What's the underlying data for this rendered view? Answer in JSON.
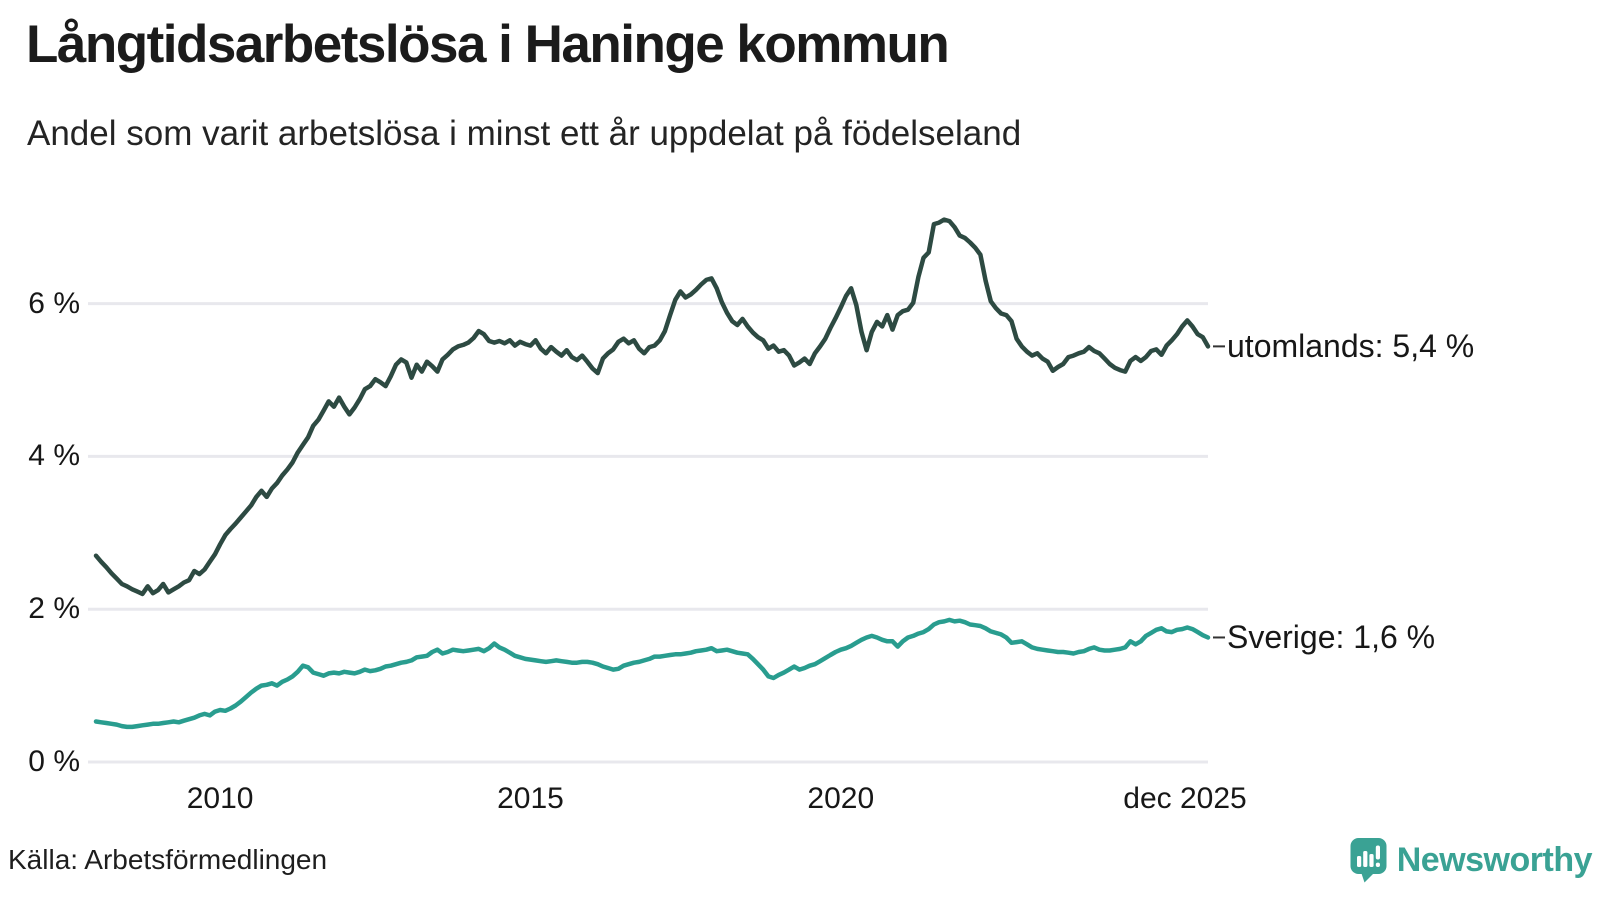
{
  "header": {
    "title": "Långtidsarbetslösa i Haninge kommun",
    "subtitle": "Andel som varit arbetslösa i minst ett år uppdelat på födelseland"
  },
  "chart_data": {
    "type": "line",
    "unit": "percent",
    "frequency": "monthly",
    "x_start": "2008-01",
    "x_end": "2025-12",
    "grid": "horizontal",
    "legend_position": "line-end-right",
    "ylim": [
      0,
      7.4
    ],
    "yticks": [
      {
        "value": 6,
        "label": "6 %"
      },
      {
        "value": 4,
        "label": "4 %"
      },
      {
        "value": 2,
        "label": "2 %"
      },
      {
        "value": 0,
        "label": "0 %"
      }
    ],
    "xticks": [
      {
        "month_index": 24,
        "label": "2010"
      },
      {
        "month_index": 84,
        "label": "2015"
      },
      {
        "month_index": 144,
        "label": "2020"
      },
      {
        "month_index": 215,
        "label": "dec 2025"
      }
    ],
    "series": [
      {
        "name": "utomlands",
        "label": "utomlands: 5,4 %",
        "last_value": 5.4,
        "color": "#2d4a42",
        "values": [
          2.7,
          2.62,
          2.55,
          2.47,
          2.4,
          2.33,
          2.3,
          2.26,
          2.23,
          2.2,
          2.3,
          2.21,
          2.25,
          2.33,
          2.22,
          2.26,
          2.3,
          2.35,
          2.38,
          2.5,
          2.46,
          2.52,
          2.62,
          2.72,
          2.85,
          2.97,
          3.05,
          3.12,
          3.2,
          3.28,
          3.36,
          3.47,
          3.55,
          3.47,
          3.58,
          3.65,
          3.75,
          3.83,
          3.92,
          4.05,
          4.15,
          4.25,
          4.4,
          4.48,
          4.6,
          4.72,
          4.65,
          4.77,
          4.65,
          4.55,
          4.64,
          4.75,
          4.88,
          4.92,
          5.01,
          4.97,
          4.92,
          5.05,
          5.2,
          5.27,
          5.23,
          5.03,
          5.2,
          5.11,
          5.24,
          5.18,
          5.11,
          5.27,
          5.33,
          5.4,
          5.44,
          5.46,
          5.49,
          5.55,
          5.64,
          5.6,
          5.51,
          5.49,
          5.51,
          5.48,
          5.52,
          5.45,
          5.5,
          5.47,
          5.45,
          5.52,
          5.41,
          5.35,
          5.43,
          5.37,
          5.32,
          5.39,
          5.3,
          5.26,
          5.32,
          5.24,
          5.15,
          5.09,
          5.28,
          5.35,
          5.4,
          5.5,
          5.54,
          5.48,
          5.52,
          5.41,
          5.35,
          5.43,
          5.45,
          5.52,
          5.64,
          5.85,
          6.05,
          6.16,
          6.08,
          6.12,
          6.18,
          6.25,
          6.31,
          6.33,
          6.2,
          6.02,
          5.88,
          5.77,
          5.72,
          5.8,
          5.7,
          5.62,
          5.56,
          5.52,
          5.41,
          5.45,
          5.37,
          5.39,
          5.32,
          5.19,
          5.23,
          5.28,
          5.21,
          5.35,
          5.44,
          5.54,
          5.68,
          5.81,
          5.95,
          6.1,
          6.2,
          5.98,
          5.63,
          5.39,
          5.63,
          5.76,
          5.7,
          5.85,
          5.66,
          5.85,
          5.9,
          5.92,
          6.01,
          6.35,
          6.6,
          6.67,
          7.04,
          7.06,
          7.1,
          7.08,
          7.0,
          6.89,
          6.86,
          6.8,
          6.73,
          6.64,
          6.3,
          6.03,
          5.94,
          5.87,
          5.85,
          5.77,
          5.54,
          5.44,
          5.37,
          5.32,
          5.35,
          5.28,
          5.24,
          5.12,
          5.17,
          5.21,
          5.3,
          5.32,
          5.35,
          5.37,
          5.43,
          5.38,
          5.35,
          5.28,
          5.21,
          5.16,
          5.13,
          5.11,
          5.25,
          5.3,
          5.25,
          5.3,
          5.38,
          5.4,
          5.33,
          5.45,
          5.52,
          5.6,
          5.7,
          5.78,
          5.7,
          5.6,
          5.56,
          5.44
        ]
      },
      {
        "name": "sverige",
        "label": "Sverige: 1,6 %",
        "last_value": 1.6,
        "color": "#299d8f",
        "values": [
          0.53,
          0.52,
          0.51,
          0.5,
          0.49,
          0.47,
          0.46,
          0.46,
          0.47,
          0.48,
          0.49,
          0.5,
          0.5,
          0.51,
          0.52,
          0.53,
          0.52,
          0.54,
          0.56,
          0.58,
          0.61,
          0.63,
          0.61,
          0.66,
          0.68,
          0.67,
          0.7,
          0.74,
          0.79,
          0.85,
          0.91,
          0.96,
          1.0,
          1.01,
          1.03,
          1.0,
          1.05,
          1.08,
          1.12,
          1.18,
          1.26,
          1.24,
          1.17,
          1.15,
          1.13,
          1.16,
          1.17,
          1.16,
          1.18,
          1.17,
          1.16,
          1.18,
          1.21,
          1.19,
          1.2,
          1.22,
          1.25,
          1.26,
          1.28,
          1.3,
          1.31,
          1.33,
          1.37,
          1.38,
          1.39,
          1.44,
          1.47,
          1.42,
          1.44,
          1.47,
          1.46,
          1.45,
          1.46,
          1.47,
          1.48,
          1.45,
          1.49,
          1.55,
          1.5,
          1.47,
          1.43,
          1.39,
          1.37,
          1.35,
          1.34,
          1.33,
          1.32,
          1.31,
          1.32,
          1.33,
          1.32,
          1.31,
          1.3,
          1.3,
          1.31,
          1.31,
          1.3,
          1.28,
          1.25,
          1.23,
          1.21,
          1.22,
          1.26,
          1.28,
          1.3,
          1.31,
          1.33,
          1.35,
          1.38,
          1.38,
          1.39,
          1.4,
          1.41,
          1.41,
          1.42,
          1.43,
          1.45,
          1.46,
          1.47,
          1.49,
          1.45,
          1.46,
          1.47,
          1.45,
          1.43,
          1.42,
          1.41,
          1.35,
          1.28,
          1.21,
          1.12,
          1.1,
          1.14,
          1.17,
          1.21,
          1.25,
          1.21,
          1.23,
          1.26,
          1.28,
          1.32,
          1.36,
          1.4,
          1.44,
          1.47,
          1.49,
          1.52,
          1.56,
          1.6,
          1.63,
          1.65,
          1.63,
          1.6,
          1.58,
          1.58,
          1.51,
          1.58,
          1.63,
          1.65,
          1.68,
          1.7,
          1.74,
          1.8,
          1.83,
          1.84,
          1.86,
          1.84,
          1.85,
          1.83,
          1.8,
          1.79,
          1.78,
          1.75,
          1.71,
          1.69,
          1.67,
          1.63,
          1.56,
          1.57,
          1.58,
          1.54,
          1.5,
          1.48,
          1.47,
          1.46,
          1.45,
          1.44,
          1.44,
          1.43,
          1.42,
          1.44,
          1.45,
          1.48,
          1.5,
          1.47,
          1.46,
          1.46,
          1.47,
          1.48,
          1.5,
          1.58,
          1.54,
          1.58,
          1.65,
          1.69,
          1.73,
          1.75,
          1.71,
          1.7,
          1.73,
          1.74,
          1.76,
          1.74,
          1.7,
          1.66,
          1.63
        ]
      }
    ]
  },
  "footer": {
    "source": "Källa: Arbetsförmedlingen",
    "logo_text": "Newsworthy"
  },
  "colors": {
    "background": "#ffffff",
    "grid": "#e8e8ed",
    "text": "#171717",
    "series_utomlands": "#2d4a42",
    "series_sverige": "#299d8f",
    "logo": "#3aa294"
  }
}
